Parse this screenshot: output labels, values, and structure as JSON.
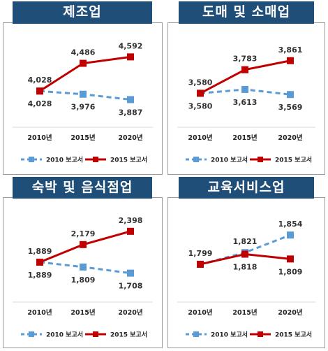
{
  "chart_data": [
    {
      "type": "line",
      "title": "제조업",
      "categories": [
        "2010년",
        "2015년",
        "2020년"
      ],
      "series": [
        {
          "name": "2010 보고서",
          "values": [
            4028,
            3976,
            3887
          ],
          "color": "#5b9bd5",
          "style": "dashed",
          "marker": "square"
        },
        {
          "name": "2015 보고서",
          "values": [
            4028,
            4486,
            4592
          ],
          "color": "#c00000",
          "style": "solid",
          "marker": "square"
        }
      ],
      "labels": {
        "s0": [
          "4,028",
          "3,976",
          "3,887"
        ],
        "s1": [
          "4,028",
          "4,486",
          "4,592"
        ]
      },
      "ylim": [
        3800,
        4700
      ],
      "legend": "bottom"
    },
    {
      "type": "line",
      "title": "도매 및 소매업",
      "categories": [
        "2010년",
        "2015년",
        "2020년"
      ],
      "series": [
        {
          "name": "2010 보고서",
          "values": [
            3580,
            3613,
            3569
          ],
          "color": "#5b9bd5",
          "style": "dashed",
          "marker": "square"
        },
        {
          "name": "2015 보고서",
          "values": [
            3580,
            3783,
            3861
          ],
          "color": "#c00000",
          "style": "solid",
          "marker": "square"
        }
      ],
      "labels": {
        "s0": [
          "3,580",
          "3,613",
          "3,569"
        ],
        "s1": [
          "3,580",
          "3,783",
          "3,861"
        ]
      },
      "ylim": [
        3480,
        3950
      ],
      "legend": "bottom"
    },
    {
      "type": "line",
      "title": "숙박 및 음식점업",
      "categories": [
        "2010년",
        "2015년",
        "2020년"
      ],
      "series": [
        {
          "name": "2010 보고서",
          "values": [
            1889,
            1809,
            1708
          ],
          "color": "#5b9bd5",
          "style": "dashed",
          "marker": "square"
        },
        {
          "name": "2015 보고서",
          "values": [
            1889,
            2179,
            2398
          ],
          "color": "#c00000",
          "style": "solid",
          "marker": "square"
        }
      ],
      "labels": {
        "s0": [
          "1,889",
          "1,809",
          "1,708"
        ],
        "s1": [
          "1,889",
          "2,179",
          "2,398"
        ]
      },
      "ylim": [
        1600,
        2500
      ],
      "legend": "bottom"
    },
    {
      "type": "line",
      "title": "교육서비스업",
      "categories": [
        "2010년",
        "2015년",
        "2020년"
      ],
      "series": [
        {
          "name": "2010 보고서",
          "values": [
            1799,
            1821,
            1854
          ],
          "color": "#5b9bd5",
          "style": "dashed",
          "marker": "square"
        },
        {
          "name": "2015 보고서",
          "values": [
            1799,
            1818,
            1809
          ],
          "color": "#c00000",
          "style": "solid",
          "marker": "square"
        }
      ],
      "labels": {
        "s0": [
          "1,799",
          "1,821",
          "1,854"
        ],
        "s1": [
          "",
          "1,818",
          "1,809"
        ]
      },
      "ylim": [
        1770,
        1870
      ],
      "legend": "bottom"
    }
  ]
}
